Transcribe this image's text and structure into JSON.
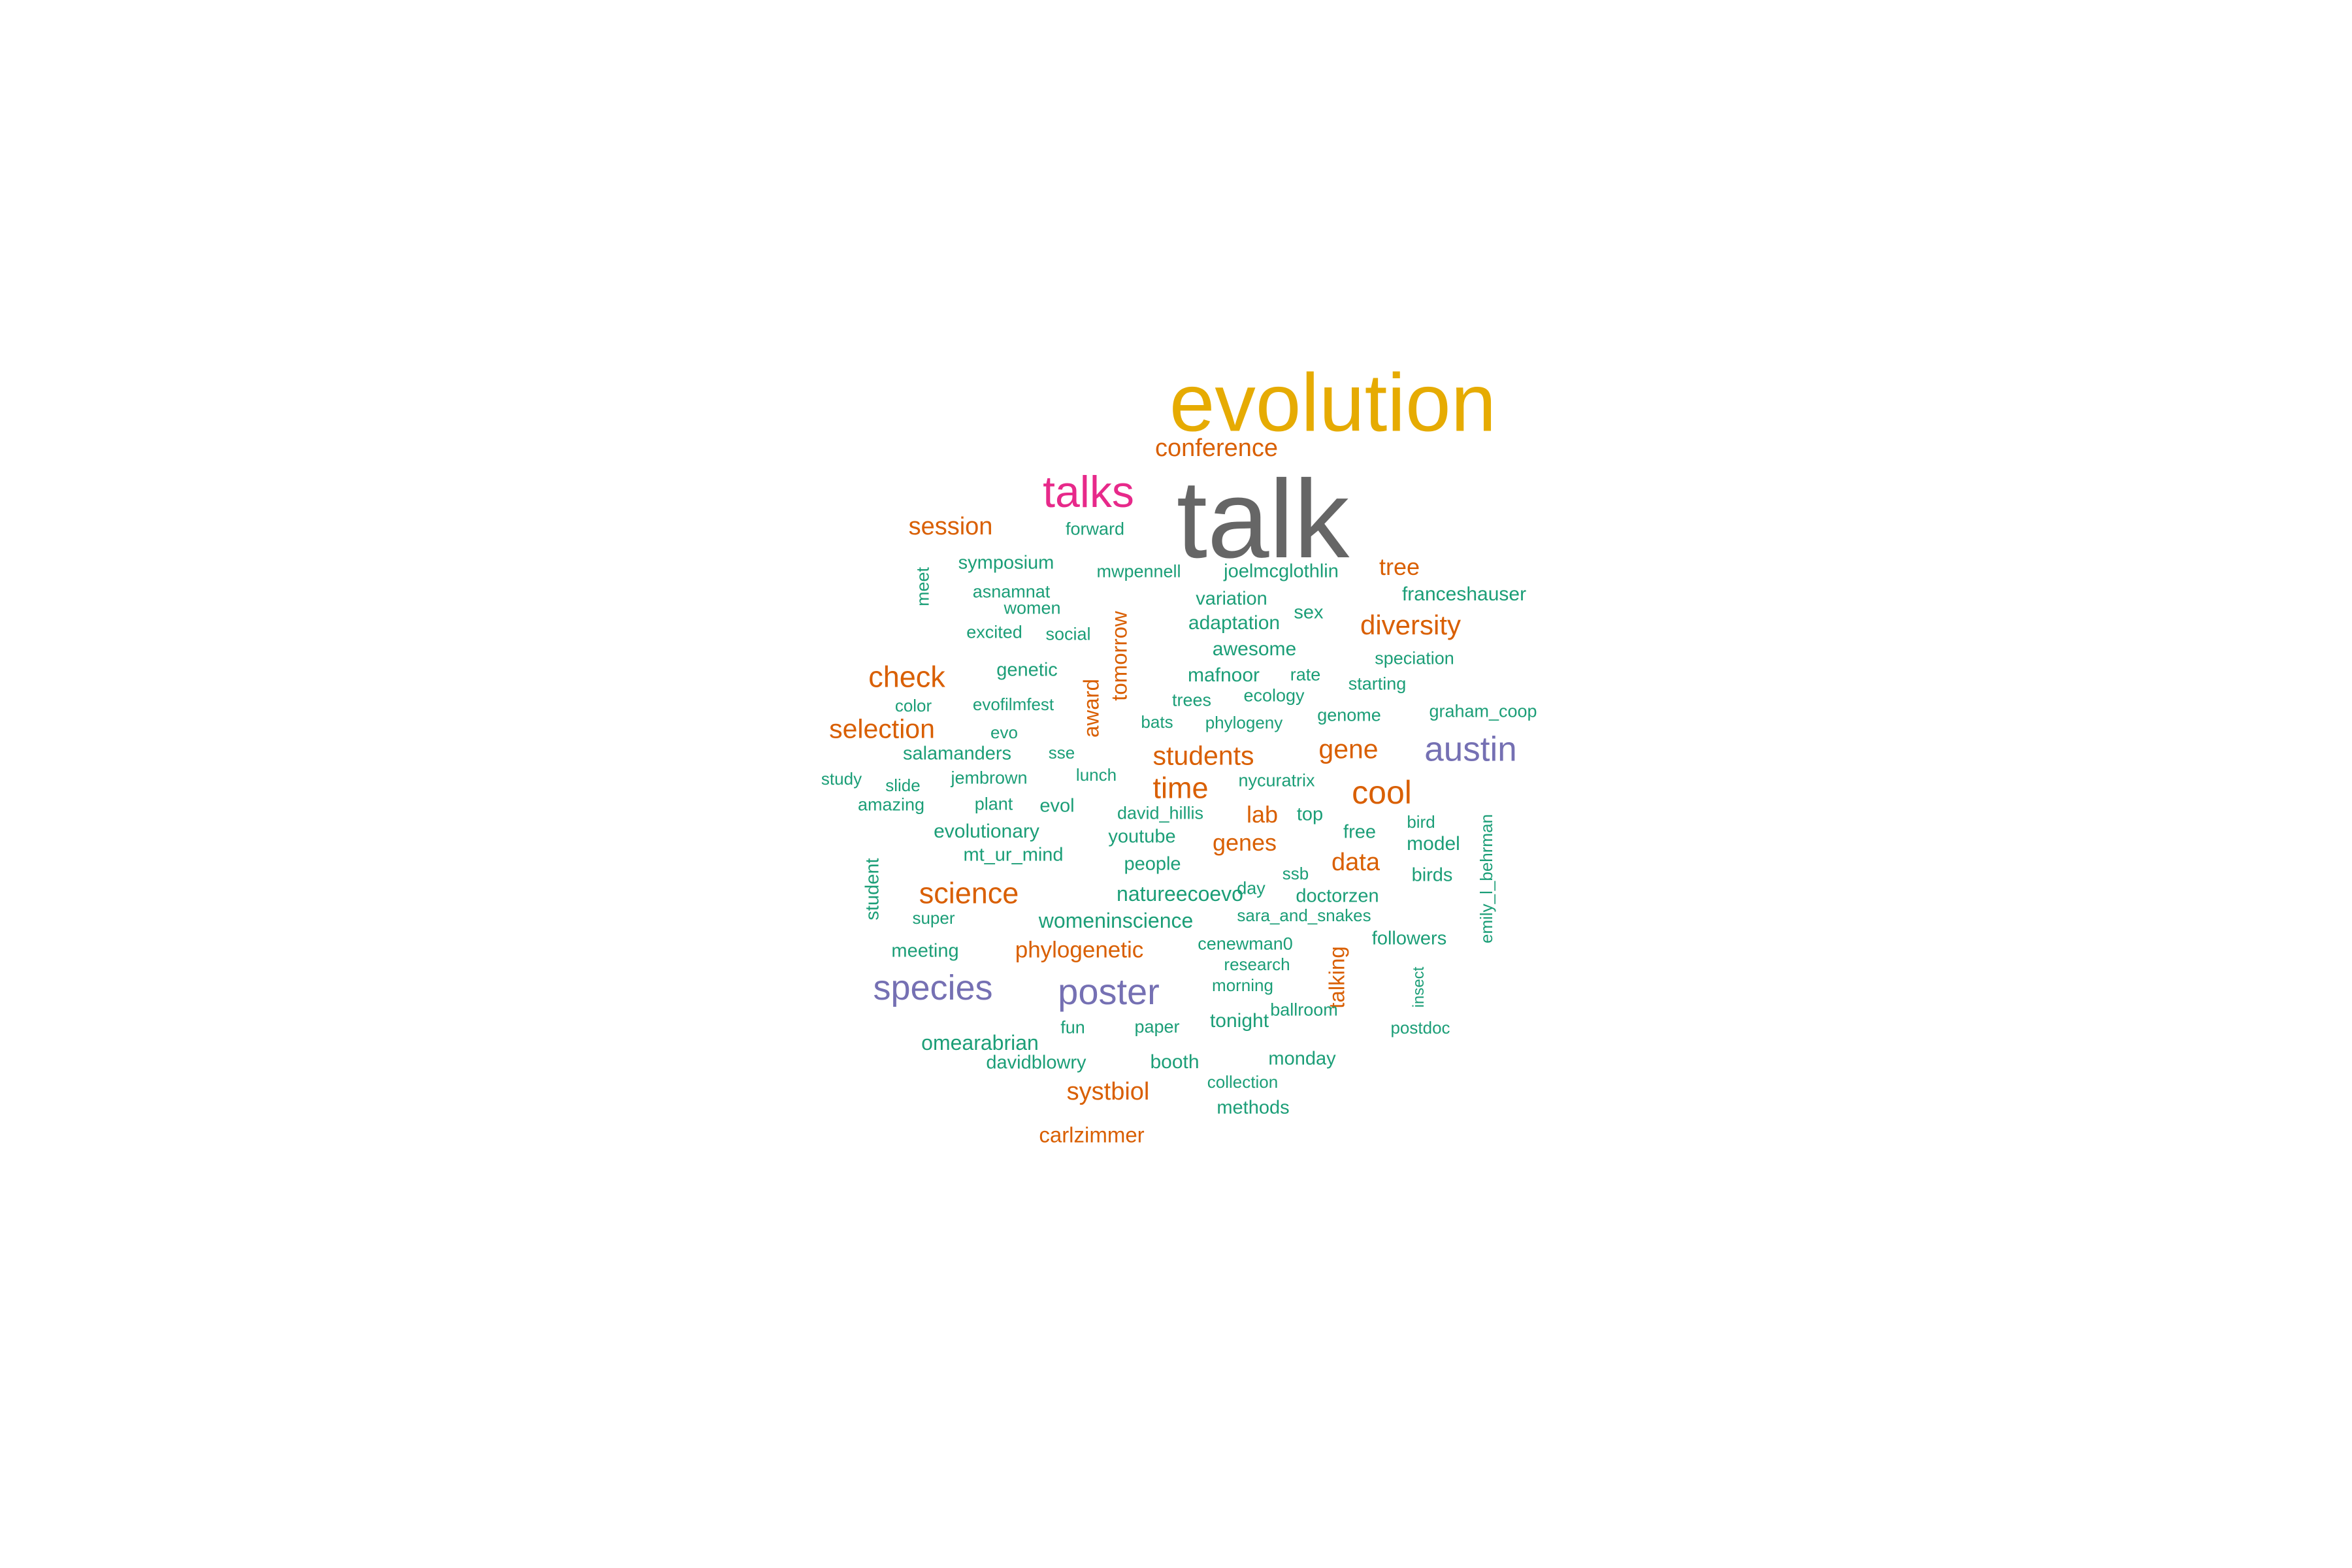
{
  "colors": {
    "tier1": "#666666",
    "tier2": "#E6AB02",
    "tier3": "#E7298A",
    "tier4": "#7570B3",
    "tier5": "#D95F02",
    "tier6": "#1B9E77"
  },
  "words": [
    {
      "text": "talk",
      "color": "tier1",
      "freq": 100,
      "vertical": false
    },
    {
      "text": "evolution",
      "color": "tier2",
      "freq": 70,
      "vertical": false
    },
    {
      "text": "talks",
      "color": "tier3",
      "freq": 45,
      "vertical": false
    },
    {
      "text": "conference",
      "color": "tier5",
      "freq": 25,
      "vertical": false
    },
    {
      "text": "session",
      "color": "tier5",
      "freq": 25,
      "vertical": false
    },
    {
      "text": "forward",
      "color": "tier6",
      "freq": 18,
      "vertical": false
    },
    {
      "text": "symposium",
      "color": "tier6",
      "freq": 19,
      "vertical": false
    },
    {
      "text": "mwpennell",
      "color": "tier6",
      "freq": 18,
      "vertical": false
    },
    {
      "text": "joelmcglothlin",
      "color": "tier6",
      "freq": 19,
      "vertical": false
    },
    {
      "text": "tree",
      "color": "tier5",
      "freq": 24,
      "vertical": false
    },
    {
      "text": "meet",
      "color": "tier6",
      "freq": 18,
      "vertical": true
    },
    {
      "text": "asnamnat",
      "color": "tier6",
      "freq": 18,
      "vertical": false
    },
    {
      "text": "women",
      "color": "tier6",
      "freq": 18,
      "vertical": false
    },
    {
      "text": "franceshauser",
      "color": "tier6",
      "freq": 20,
      "vertical": false
    },
    {
      "text": "variation",
      "color": "tier6",
      "freq": 19,
      "vertical": false
    },
    {
      "text": "sex",
      "color": "tier6",
      "freq": 19,
      "vertical": false
    },
    {
      "text": "diversity",
      "color": "tier5",
      "freq": 28,
      "vertical": false
    },
    {
      "text": "excited",
      "color": "tier6",
      "freq": 18,
      "vertical": false
    },
    {
      "text": "social",
      "color": "tier6",
      "freq": 18,
      "vertical": false
    },
    {
      "text": "adaptation",
      "color": "tier6",
      "freq": 20,
      "vertical": false
    },
    {
      "text": "tomorrow",
      "color": "tier5",
      "freq": 22,
      "vertical": true
    },
    {
      "text": "awesome",
      "color": "tier6",
      "freq": 20,
      "vertical": false
    },
    {
      "text": "speciation",
      "color": "tier6",
      "freq": 18,
      "vertical": false
    },
    {
      "text": "check",
      "color": "tier5",
      "freq": 30,
      "vertical": false
    },
    {
      "text": "genetic",
      "color": "tier6",
      "freq": 19,
      "vertical": false
    },
    {
      "text": "mafnoor",
      "color": "tier6",
      "freq": 20,
      "vertical": false
    },
    {
      "text": "rate",
      "color": "tier6",
      "freq": 18,
      "vertical": false
    },
    {
      "text": "starting",
      "color": "tier6",
      "freq": 18,
      "vertical": false
    },
    {
      "text": "color",
      "color": "tier6",
      "freq": 17,
      "vertical": false
    },
    {
      "text": "evofilmfest",
      "color": "tier6",
      "freq": 17,
      "vertical": false
    },
    {
      "text": "trees",
      "color": "tier6",
      "freq": 18,
      "vertical": false
    },
    {
      "text": "ecology",
      "color": "tier6",
      "freq": 18,
      "vertical": false
    },
    {
      "text": "genome",
      "color": "tier6",
      "freq": 18,
      "vertical": false
    },
    {
      "text": "graham_coop",
      "color": "tier6",
      "freq": 18,
      "vertical": false
    },
    {
      "text": "selection",
      "color": "tier5",
      "freq": 27,
      "vertical": false
    },
    {
      "text": "evo",
      "color": "tier6",
      "freq": 17,
      "vertical": false
    },
    {
      "text": "award",
      "color": "tier5",
      "freq": 22,
      "vertical": true
    },
    {
      "text": "bats",
      "color": "tier6",
      "freq": 17,
      "vertical": false
    },
    {
      "text": "phylogeny",
      "color": "tier6",
      "freq": 17,
      "vertical": false
    },
    {
      "text": "gene",
      "color": "tier5",
      "freq": 27,
      "vertical": false
    },
    {
      "text": "austin",
      "color": "tier4",
      "freq": 35,
      "vertical": false
    },
    {
      "text": "salamanders",
      "color": "tier6",
      "freq": 19,
      "vertical": false
    },
    {
      "text": "sse",
      "color": "tier6",
      "freq": 17,
      "vertical": false
    },
    {
      "text": "students",
      "color": "tier5",
      "freq": 27,
      "vertical": false
    },
    {
      "text": "study",
      "color": "tier6",
      "freq": 17,
      "vertical": false
    },
    {
      "text": "slide",
      "color": "tier6",
      "freq": 17,
      "vertical": false
    },
    {
      "text": "jembrown",
      "color": "tier6",
      "freq": 18,
      "vertical": false
    },
    {
      "text": "lunch",
      "color": "tier6",
      "freq": 17,
      "vertical": false
    },
    {
      "text": "time",
      "color": "tier5",
      "freq": 30,
      "vertical": false
    },
    {
      "text": "nycuratrix",
      "color": "tier6",
      "freq": 18,
      "vertical": false
    },
    {
      "text": "cool",
      "color": "tier5",
      "freq": 33,
      "vertical": false
    },
    {
      "text": "amazing",
      "color": "tier6",
      "freq": 18,
      "vertical": false
    },
    {
      "text": "plant",
      "color": "tier6",
      "freq": 18,
      "vertical": false
    },
    {
      "text": "evol",
      "color": "tier6",
      "freq": 19,
      "vertical": false
    },
    {
      "text": "david_hillis",
      "color": "tier6",
      "freq": 18,
      "vertical": false
    },
    {
      "text": "lab",
      "color": "tier5",
      "freq": 24,
      "vertical": false
    },
    {
      "text": "top",
      "color": "tier6",
      "freq": 19,
      "vertical": false
    },
    {
      "text": "bird",
      "color": "tier6",
      "freq": 17,
      "vertical": false
    },
    {
      "text": "emily_l_behrman",
      "color": "tier6",
      "freq": 17,
      "vertical": true
    },
    {
      "text": "evolutionary",
      "color": "tier6",
      "freq": 20,
      "vertical": false
    },
    {
      "text": "youtube",
      "color": "tier6",
      "freq": 19,
      "vertical": false
    },
    {
      "text": "free",
      "color": "tier6",
      "freq": 19,
      "vertical": false
    },
    {
      "text": "genes",
      "color": "tier5",
      "freq": 24,
      "vertical": false
    },
    {
      "text": "model",
      "color": "tier6",
      "freq": 20,
      "vertical": false
    },
    {
      "text": "student",
      "color": "tier6",
      "freq": 19,
      "vertical": true
    },
    {
      "text": "mt_ur_mind",
      "color": "tier6",
      "freq": 19,
      "vertical": false
    },
    {
      "text": "people",
      "color": "tier6",
      "freq": 19,
      "vertical": false
    },
    {
      "text": "data",
      "color": "tier5",
      "freq": 25,
      "vertical": false
    },
    {
      "text": "birds",
      "color": "tier6",
      "freq": 19,
      "vertical": false
    },
    {
      "text": "science",
      "color": "tier5",
      "freq": 30,
      "vertical": false
    },
    {
      "text": "day",
      "color": "tier6",
      "freq": 18,
      "vertical": false
    },
    {
      "text": "ssb",
      "color": "tier6",
      "freq": 17,
      "vertical": false
    },
    {
      "text": "natureecoevo",
      "color": "tier6",
      "freq": 21,
      "vertical": false
    },
    {
      "text": "doctorzen",
      "color": "tier6",
      "freq": 19,
      "vertical": false
    },
    {
      "text": "super",
      "color": "tier6",
      "freq": 17,
      "vertical": false
    },
    {
      "text": "womeninscience",
      "color": "tier6",
      "freq": 21,
      "vertical": false
    },
    {
      "text": "sara_and_snakes",
      "color": "tier6",
      "freq": 17,
      "vertical": false
    },
    {
      "text": "followers",
      "color": "tier6",
      "freq": 19,
      "vertical": false
    },
    {
      "text": "meeting",
      "color": "tier6",
      "freq": 19,
      "vertical": false
    },
    {
      "text": "phylogenetic",
      "color": "tier5",
      "freq": 23,
      "vertical": false
    },
    {
      "text": "cenewman0",
      "color": "tier6",
      "freq": 18,
      "vertical": false
    },
    {
      "text": "talking",
      "color": "tier5",
      "freq": 22,
      "vertical": true
    },
    {
      "text": "research",
      "color": "tier6",
      "freq": 17,
      "vertical": false
    },
    {
      "text": "species",
      "color": "tier4",
      "freq": 36,
      "vertical": false
    },
    {
      "text": "poster",
      "color": "tier4",
      "freq": 37,
      "vertical": false
    },
    {
      "text": "morning",
      "color": "tier6",
      "freq": 17,
      "vertical": false
    },
    {
      "text": "ballroom",
      "color": "tier6",
      "freq": 18,
      "vertical": false
    },
    {
      "text": "insect",
      "color": "tier6",
      "freq": 16,
      "vertical": true
    },
    {
      "text": "tonight",
      "color": "tier6",
      "freq": 20,
      "vertical": false
    },
    {
      "text": "fun",
      "color": "tier6",
      "freq": 18,
      "vertical": false
    },
    {
      "text": "paper",
      "color": "tier6",
      "freq": 18,
      "vertical": false
    },
    {
      "text": "postdoc",
      "color": "tier6",
      "freq": 17,
      "vertical": false
    },
    {
      "text": "omearabrian",
      "color": "tier6",
      "freq": 21,
      "vertical": false
    },
    {
      "text": "monday",
      "color": "tier6",
      "freq": 19,
      "vertical": false
    },
    {
      "text": "davidblowry",
      "color": "tier6",
      "freq": 19,
      "vertical": false
    },
    {
      "text": "booth",
      "color": "tier6",
      "freq": 20,
      "vertical": false
    },
    {
      "text": "collection",
      "color": "tier6",
      "freq": 17,
      "vertical": false
    },
    {
      "text": "systbiol",
      "color": "tier5",
      "freq": 25,
      "vertical": false
    },
    {
      "text": "methods",
      "color": "tier6",
      "freq": 19,
      "vertical": false
    },
    {
      "text": "carlzimmer",
      "color": "tier5",
      "freq": 22,
      "vertical": false
    }
  ]
}
